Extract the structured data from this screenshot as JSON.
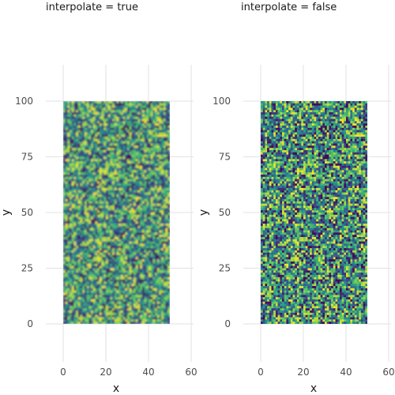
{
  "chart_data": [
    {
      "type": "heatmap",
      "title": "interpolate = true",
      "xlabel": "x",
      "ylabel": "y",
      "xlim": [
        -2.5,
        59.5
      ],
      "ylim": [
        -22,
        117
      ],
      "x_ticks": [
        0,
        20,
        40,
        60
      ],
      "y_ticks": [
        0,
        25,
        50,
        75,
        100
      ],
      "x_tick_labels": [
        "0",
        "20",
        "40",
        "60"
      ],
      "y_tick_labels": [
        "0",
        "25",
        "50",
        "75",
        "100"
      ],
      "grid": true,
      "data_extent": {
        "x": [
          0,
          50
        ],
        "y": [
          0,
          100
        ]
      },
      "interpolate": true,
      "colormap": [
        "#440154",
        "#3b528b",
        "#21918c",
        "#5ec962",
        "#fde725"
      ]
    },
    {
      "type": "heatmap",
      "title": "interpolate = false",
      "xlabel": "x",
      "ylabel": "y",
      "xlim": [
        -2.5,
        59.5
      ],
      "ylim": [
        -22,
        117
      ],
      "x_ticks": [
        0,
        20,
        40,
        60
      ],
      "y_ticks": [
        0,
        25,
        50,
        75,
        100
      ],
      "x_tick_labels": [
        "0",
        "20",
        "40",
        "60"
      ],
      "y_tick_labels": [
        "0",
        "25",
        "50",
        "75",
        "100"
      ],
      "grid": true,
      "data_extent": {
        "x": [
          0,
          50
        ],
        "y": [
          0,
          100
        ]
      },
      "interpolate": false,
      "colormap": [
        "#440154",
        "#3b528b",
        "#21918c",
        "#5ec962",
        "#fde725"
      ]
    }
  ]
}
